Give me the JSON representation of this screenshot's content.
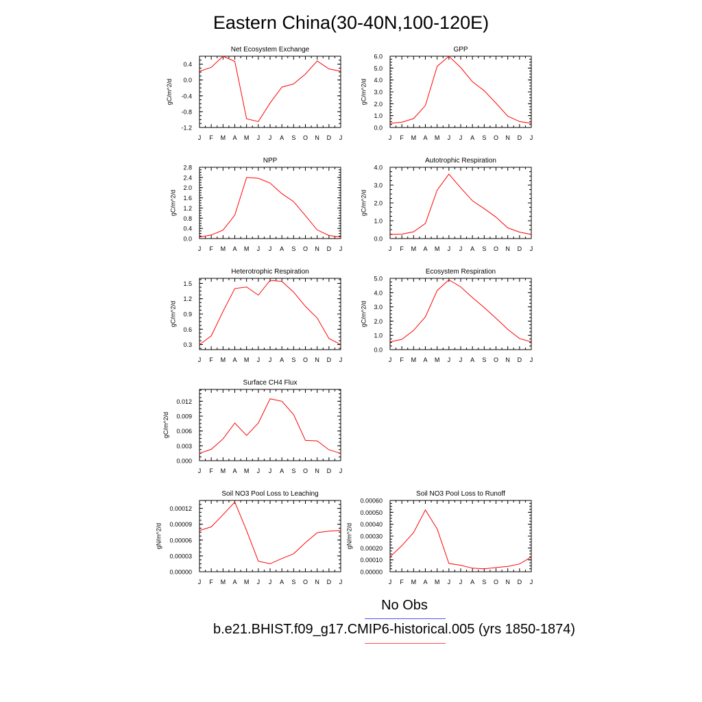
{
  "title": "Eastern China(30-40N,100-120E)",
  "months": [
    "J",
    "F",
    "M",
    "A",
    "M",
    "J",
    "J",
    "A",
    "S",
    "O",
    "N",
    "D",
    "J"
  ],
  "legend": {
    "obs_label": "No Obs",
    "obs_color": "#4f4fff",
    "model_label": "b.e21.BHIST.f09_g17.CMIP6-historical.005 (yrs 1850-1874)",
    "model_color": "#ff0000"
  },
  "chart_data": [
    {
      "type": "line",
      "title": "Net Ecosystem Exchange",
      "ylabel": "gC/m^2/d",
      "ylim": [
        -1.2,
        0.6
      ],
      "yticks": [
        0.4,
        0.0,
        -0.4,
        -0.8,
        -1.2
      ],
      "ytick_labels": [
        "0.4",
        "0.0",
        "-0.4",
        "-0.8",
        "-1.2"
      ],
      "x": [
        "J",
        "F",
        "M",
        "A",
        "M",
        "J",
        "J",
        "A",
        "S",
        "O",
        "N",
        "D",
        "J"
      ],
      "series": [
        {
          "values": [
            0.22,
            0.32,
            0.6,
            0.47,
            -0.98,
            -1.05,
            -0.58,
            -0.18,
            -0.1,
            0.15,
            0.48,
            0.28,
            0.22
          ]
        }
      ]
    },
    {
      "type": "line",
      "title": "GPP",
      "ylabel": "gC/m^2/d",
      "ylim": [
        0.0,
        6.0
      ],
      "yticks": [
        6.0,
        5.0,
        4.0,
        3.0,
        2.0,
        1.0,
        0.0
      ],
      "ytick_labels": [
        "6.0",
        "5.0",
        "4.0",
        "3.0",
        "2.0",
        "1.0",
        "0.0"
      ],
      "x": [
        "J",
        "F",
        "M",
        "A",
        "M",
        "J",
        "J",
        "A",
        "S",
        "O",
        "N",
        "D",
        "J"
      ],
      "series": [
        {
          "values": [
            0.35,
            0.45,
            0.75,
            1.85,
            5.15,
            6.0,
            5.05,
            3.85,
            3.1,
            2.05,
            0.95,
            0.5,
            0.35
          ]
        }
      ]
    },
    {
      "type": "line",
      "title": "NPP",
      "ylabel": "gC/m^2/d",
      "ylim": [
        0.0,
        2.8
      ],
      "yticks": [
        2.8,
        2.4,
        2.0,
        1.6,
        1.2,
        0.8,
        0.4,
        0.0
      ],
      "ytick_labels": [
        "2.8",
        "2.4",
        "2.0",
        "1.6",
        "1.2",
        "0.8",
        "0.4",
        "0.0"
      ],
      "x": [
        "J",
        "F",
        "M",
        "A",
        "M",
        "J",
        "J",
        "A",
        "S",
        "O",
        "N",
        "D",
        "J"
      ],
      "series": [
        {
          "values": [
            0.06,
            0.14,
            0.33,
            0.92,
            2.4,
            2.37,
            2.18,
            1.76,
            1.45,
            0.9,
            0.34,
            0.12,
            0.06
          ]
        }
      ]
    },
    {
      "type": "line",
      "title": "Autotrophic Respiration",
      "ylabel": "gC/m^2/d",
      "ylim": [
        0.0,
        4.0
      ],
      "yticks": [
        4.0,
        3.0,
        2.0,
        1.0,
        0.0
      ],
      "ytick_labels": [
        "4.0",
        "3.0",
        "2.0",
        "1.0",
        "0.0"
      ],
      "x": [
        "J",
        "F",
        "M",
        "A",
        "M",
        "J",
        "J",
        "A",
        "S",
        "O",
        "N",
        "D",
        "J"
      ],
      "series": [
        {
          "values": [
            0.23,
            0.25,
            0.38,
            0.85,
            2.72,
            3.62,
            2.85,
            2.12,
            1.68,
            1.2,
            0.6,
            0.36,
            0.23
          ]
        }
      ]
    },
    {
      "type": "line",
      "title": "Heterotrophic Respiration",
      "ylabel": "gC/m^2/d",
      "ylim": [
        0.2,
        1.6
      ],
      "yticks": [
        1.5,
        1.2,
        0.9,
        0.6,
        0.3
      ],
      "ytick_labels": [
        "1.5",
        "1.2",
        "0.9",
        "0.6",
        "0.3"
      ],
      "x": [
        "J",
        "F",
        "M",
        "A",
        "M",
        "J",
        "J",
        "A",
        "S",
        "O",
        "N",
        "D",
        "J"
      ],
      "series": [
        {
          "values": [
            0.3,
            0.47,
            0.95,
            1.4,
            1.43,
            1.27,
            1.56,
            1.54,
            1.33,
            1.05,
            0.82,
            0.42,
            0.3
          ]
        }
      ]
    },
    {
      "type": "line",
      "title": "Ecosystem Respiration",
      "ylabel": "gC/m^2/d",
      "ylim": [
        0.0,
        5.0
      ],
      "yticks": [
        5.0,
        4.0,
        3.0,
        2.0,
        1.0,
        0.0
      ],
      "ytick_labels": [
        "5.0",
        "4.0",
        "3.0",
        "2.0",
        "1.0",
        "0.0"
      ],
      "x": [
        "J",
        "F",
        "M",
        "A",
        "M",
        "J",
        "J",
        "A",
        "S",
        "O",
        "N",
        "D",
        "J"
      ],
      "series": [
        {
          "values": [
            0.55,
            0.72,
            1.35,
            2.3,
            4.15,
            4.9,
            4.4,
            3.65,
            2.95,
            2.2,
            1.42,
            0.78,
            0.55
          ]
        }
      ]
    },
    {
      "type": "line",
      "title": "Surface CH4 Flux",
      "ylabel": "gC/m^2/d",
      "ylim": [
        0.0,
        0.0144
      ],
      "yticks": [
        0.012,
        0.009,
        0.006,
        0.003,
        0.0
      ],
      "ytick_labels": [
        "0.012",
        "0.009",
        "0.006",
        "0.003",
        "0.000"
      ],
      "x": [
        "J",
        "F",
        "M",
        "A",
        "M",
        "J",
        "J",
        "A",
        "S",
        "O",
        "N",
        "D",
        "J"
      ],
      "series": [
        {
          "values": [
            0.0015,
            0.0023,
            0.0044,
            0.0076,
            0.0051,
            0.0076,
            0.0125,
            0.012,
            0.0093,
            0.0041,
            0.004,
            0.0022,
            0.0015
          ]
        }
      ]
    },
    {
      "type": "line",
      "title": "Soil NO3 Pool Loss to Leaching",
      "ylabel": "gN/m^2/d",
      "ylim": [
        0.0,
        0.000135
      ],
      "yticks": [
        0.00012,
        9e-05,
        6e-05,
        3e-05,
        0.0
      ],
      "ytick_labels": [
        "0.00012",
        "0.00009",
        "0.00006",
        "0.00003",
        "0.00000"
      ],
      "x": [
        "J",
        "F",
        "M",
        "A",
        "M",
        "J",
        "J",
        "A",
        "S",
        "O",
        "N",
        "D",
        "J"
      ],
      "series": [
        {
          "values": [
            7.8e-05,
            8.5e-05,
            0.000108,
            0.000132,
            7.8e-05,
            2e-05,
            1.5e-05,
            2.5e-05,
            3.4e-05,
            5.5e-05,
            7.4e-05,
            7.7e-05,
            7.8e-05
          ]
        }
      ]
    },
    {
      "type": "line",
      "title": "Soil NO3 Pool Loss to Runoff",
      "ylabel": "gN/m^2/d",
      "ylim": [
        0.0,
        0.0006
      ],
      "yticks": [
        0.0006,
        0.0005,
        0.0004,
        0.0003,
        0.0002,
        0.0001,
        0.0
      ],
      "ytick_labels": [
        "0.00060",
        "0.00050",
        "0.00040",
        "0.00030",
        "0.00020",
        "0.00010",
        "0.00000"
      ],
      "x": [
        "J",
        "F",
        "M",
        "A",
        "M",
        "J",
        "J",
        "A",
        "S",
        "O",
        "N",
        "D",
        "J"
      ],
      "series": [
        {
          "values": [
            0.000125,
            0.00022,
            0.00033,
            0.00052,
            0.00036,
            7e-05,
            5.5e-05,
            3e-05,
            2.5e-05,
            3.5e-05,
            4.5e-05,
            6.5e-05,
            0.000125
          ]
        }
      ]
    }
  ]
}
